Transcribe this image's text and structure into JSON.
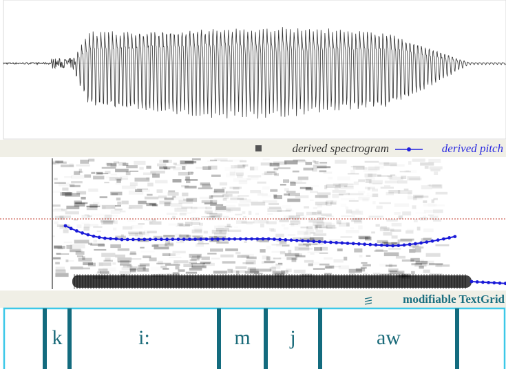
{
  "legend": {
    "spectrogram": "derived spectrogram",
    "pitch": "derived pitch"
  },
  "textgrid": {
    "title": "modifiable TextGrid",
    "intervals": [
      "k",
      "i:",
      "m",
      "j",
      "aw"
    ]
  }
}
